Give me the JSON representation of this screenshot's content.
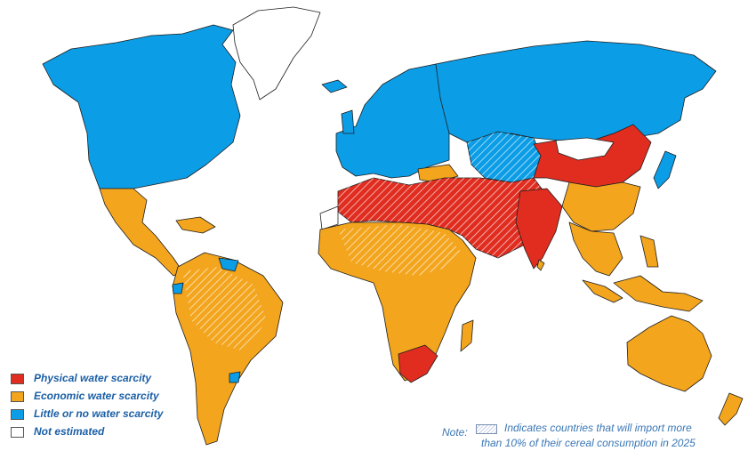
{
  "colors": {
    "physical": "#e02d20",
    "economic": "#f3a51d",
    "little": "#0b9de6",
    "not_estimated": "#ffffff",
    "hatch": "#ffffff",
    "border": "#1f1f1f"
  },
  "legend": {
    "items": [
      {
        "label": "Physical water scarcity",
        "key": "physical"
      },
      {
        "label": "Economic water scarcity",
        "key": "economic"
      },
      {
        "label": "Little or no water scarcity",
        "key": "little"
      },
      {
        "label": "Not estimated",
        "key": "not_estimated"
      }
    ]
  },
  "note": {
    "label": "Note:",
    "line1": "Indicates countries that will import more",
    "line2": "than 10% of their cereal consumption in 2025"
  }
}
